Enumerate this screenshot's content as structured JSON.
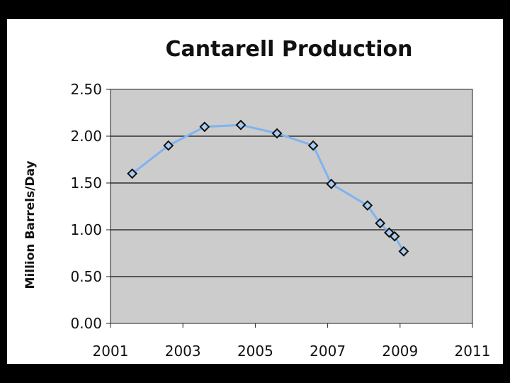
{
  "chart_data": {
    "type": "line",
    "title": "Cantarell Production",
    "xlabel": "",
    "ylabel": "Million Barrels/Day",
    "xlim": [
      2001,
      2011
    ],
    "ylim": [
      0,
      2.5
    ],
    "x_ticks": [
      "2001",
      "2003",
      "2005",
      "2007",
      "2009",
      "2011"
    ],
    "y_ticks": [
      "0.00",
      "0.50",
      "1.00",
      "1.50",
      "2.00",
      "2.50"
    ],
    "grid": true,
    "legend": "none",
    "series": [
      {
        "x": [
          2001.6,
          2002.6,
          2003.6,
          2004.6,
          2005.6,
          2006.6,
          2007.1,
          2008.1,
          2008.45,
          2008.7,
          2008.85,
          2009.1
        ],
        "values": [
          1.6,
          1.9,
          2.1,
          2.12,
          2.03,
          1.9,
          1.49,
          1.26,
          1.07,
          0.97,
          0.93,
          0.77
        ]
      }
    ],
    "colors": {
      "line": "#7fb3f0",
      "marker_fill": "#a9cdf2",
      "marker_stroke": "#111111",
      "plot_background": "#cccccc",
      "gridline": "#111111"
    }
  }
}
